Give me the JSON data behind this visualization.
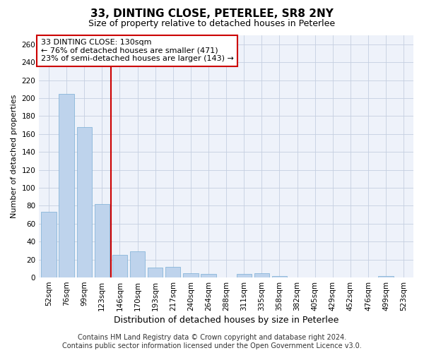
{
  "title": "33, DINTING CLOSE, PETERLEE, SR8 2NY",
  "subtitle": "Size of property relative to detached houses in Peterlee",
  "xlabel": "Distribution of detached houses by size in Peterlee",
  "ylabel": "Number of detached properties",
  "categories": [
    "52sqm",
    "76sqm",
    "99sqm",
    "123sqm",
    "146sqm",
    "170sqm",
    "193sqm",
    "217sqm",
    "240sqm",
    "264sqm",
    "288sqm",
    "311sqm",
    "335sqm",
    "358sqm",
    "382sqm",
    "405sqm",
    "429sqm",
    "452sqm",
    "476sqm",
    "499sqm",
    "523sqm"
  ],
  "values": [
    73,
    205,
    168,
    82,
    25,
    29,
    11,
    12,
    5,
    4,
    0,
    4,
    5,
    2,
    0,
    0,
    0,
    0,
    0,
    2,
    0
  ],
  "bar_color": "#bed3ec",
  "bar_edge_color": "#7aadd4",
  "vline_color": "#cc0000",
  "vline_x_index": 3.5,
  "annotation_text": "33 DINTING CLOSE: 130sqm\n← 76% of detached houses are smaller (471)\n23% of semi-detached houses are larger (143) →",
  "annotation_box_facecolor": "#ffffff",
  "annotation_box_edgecolor": "#cc0000",
  "ylim": [
    0,
    270
  ],
  "yticks": [
    0,
    20,
    40,
    60,
    80,
    100,
    120,
    140,
    160,
    180,
    200,
    220,
    240,
    260
  ],
  "footer_text": "Contains HM Land Registry data © Crown copyright and database right 2024.\nContains public sector information licensed under the Open Government Licence v3.0.",
  "bg_color": "#eef2fa",
  "grid_color": "#c5cfe0",
  "title_fontsize": 11,
  "subtitle_fontsize": 9,
  "xlabel_fontsize": 9,
  "ylabel_fontsize": 8,
  "tick_fontsize": 7.5,
  "ann_fontsize": 8,
  "footer_fontsize": 7
}
